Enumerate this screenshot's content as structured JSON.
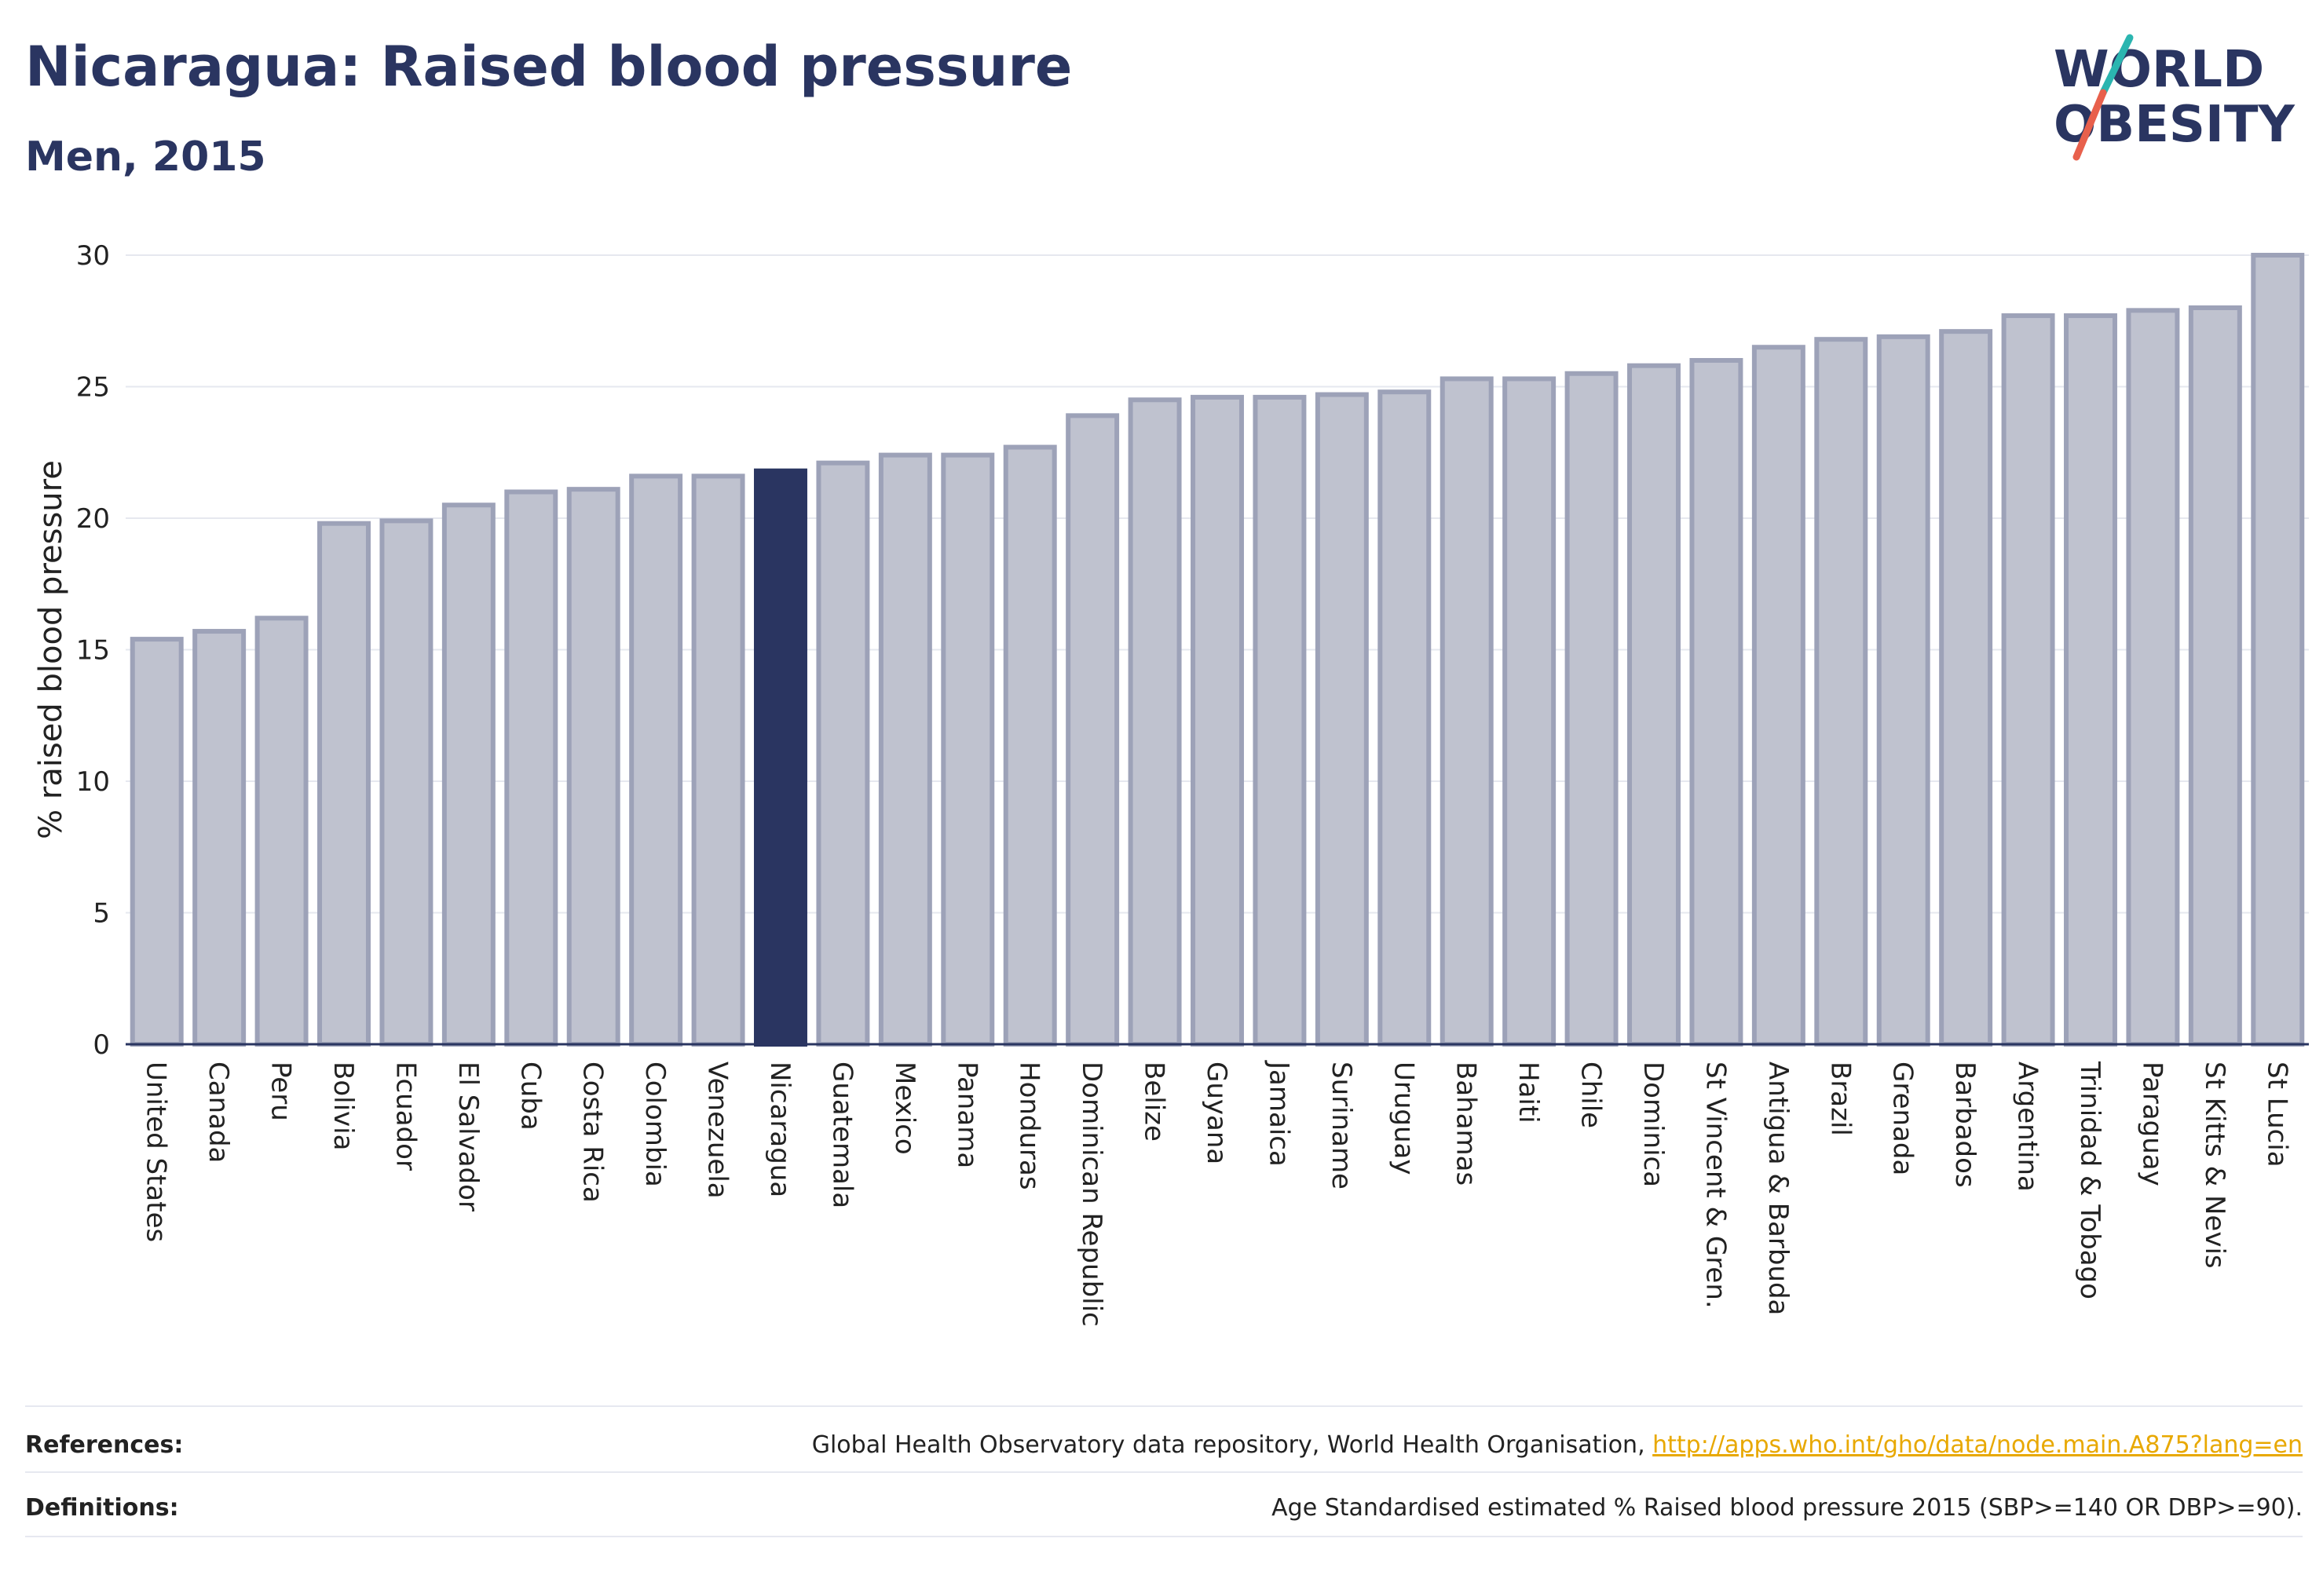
{
  "header": {
    "title": "Nicaragua: Raised blood pressure",
    "subtitle": "Men, 2015"
  },
  "logo": {
    "line1": "WORLD",
    "line2": "OBESITY",
    "colors": {
      "text": "#2a3561",
      "slash_top": "#2bb5b0",
      "slash_bottom": "#e8604c"
    }
  },
  "chart_data": {
    "type": "bar",
    "ylabel": "% raised blood pressure",
    "xlabel": "",
    "ylim": [
      0,
      30
    ],
    "yticks": [
      0,
      5,
      10,
      15,
      20,
      25,
      30
    ],
    "grid": true,
    "highlight": "Nicaragua",
    "colors": {
      "bar": "#bfc2cf",
      "bar_border": "#9da2b8",
      "highlight": "#2a3561"
    },
    "categories": [
      "United States",
      "Canada",
      "Peru",
      "Bolivia",
      "Ecuador",
      "El Salvador",
      "Cuba",
      "Costa Rica",
      "Colombia",
      "Venezuela",
      "Nicaragua",
      "Guatemala",
      "Mexico",
      "Panama",
      "Honduras",
      "Dominican Republic",
      "Belize",
      "Guyana",
      "Jamaica",
      "Suriname",
      "Uruguay",
      "Bahamas",
      "Haiti",
      "Chile",
      "Dominica",
      "St Vincent & Gren.",
      "Antigua & Barbuda",
      "Brazil",
      "Grenada",
      "Barbados",
      "Argentina",
      "Trinidad & Tobago",
      "Paraguay",
      "St Kitts & Nevis",
      "St Lucia"
    ],
    "values": [
      15.4,
      15.7,
      16.2,
      19.8,
      19.9,
      20.5,
      21.0,
      21.1,
      21.6,
      21.6,
      21.8,
      22.1,
      22.4,
      22.4,
      22.7,
      23.9,
      24.5,
      24.6,
      24.6,
      24.7,
      24.8,
      25.3,
      25.3,
      25.5,
      25.8,
      26.0,
      26.5,
      26.8,
      26.9,
      27.1,
      27.7,
      27.7,
      27.9,
      28.0,
      30.0
    ]
  },
  "footer": {
    "references_label": "References:",
    "references_text": "Global Health Observatory data repository, World Health Organisation, ",
    "references_link": "http://apps.who.int/gho/data/node.main.A875?lang=en",
    "definitions_label": "Definitions:",
    "definitions_text": "Age Standardised estimated % Raised blood pressure 2015 (SBP>=140 OR DBP>=90)."
  }
}
